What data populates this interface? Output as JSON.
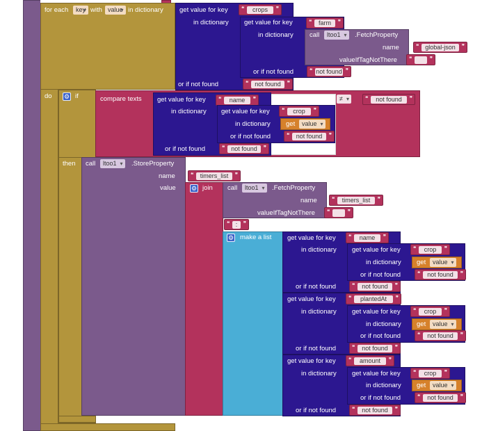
{
  "foreach": {
    "label_pre": "for each",
    "var": "key",
    "label_with": "with",
    "var2": "value",
    "label_post": "in dictionary",
    "do": "do"
  },
  "gv": {
    "get_value_for_key": "get value for key",
    "in_dictionary": "in dictionary",
    "or_if_not_found": "or if not found"
  },
  "keys": {
    "crops": "crops",
    "farm": "farm",
    "name": "name",
    "crop": "crop",
    "timers_list": "timers_list",
    "plantedAt": "plantedAt",
    "amount": "amount",
    "global_json": "global-json",
    "colon": ":",
    "not_found": "not found"
  },
  "call": {
    "call": "call",
    "component": "ltoo1",
    "fetch": ".FetchProperty",
    "store": ".StoreProperty",
    "name": "name",
    "value": "value",
    "value_if": "valueIfTagNotThere"
  },
  "ifblock": {
    "if": "if",
    "then": "then",
    "compare": "compare texts",
    "op": "≠"
  },
  "misc": {
    "get": "get",
    "value": "value",
    "join": "join",
    "make_list": "make a list"
  }
}
